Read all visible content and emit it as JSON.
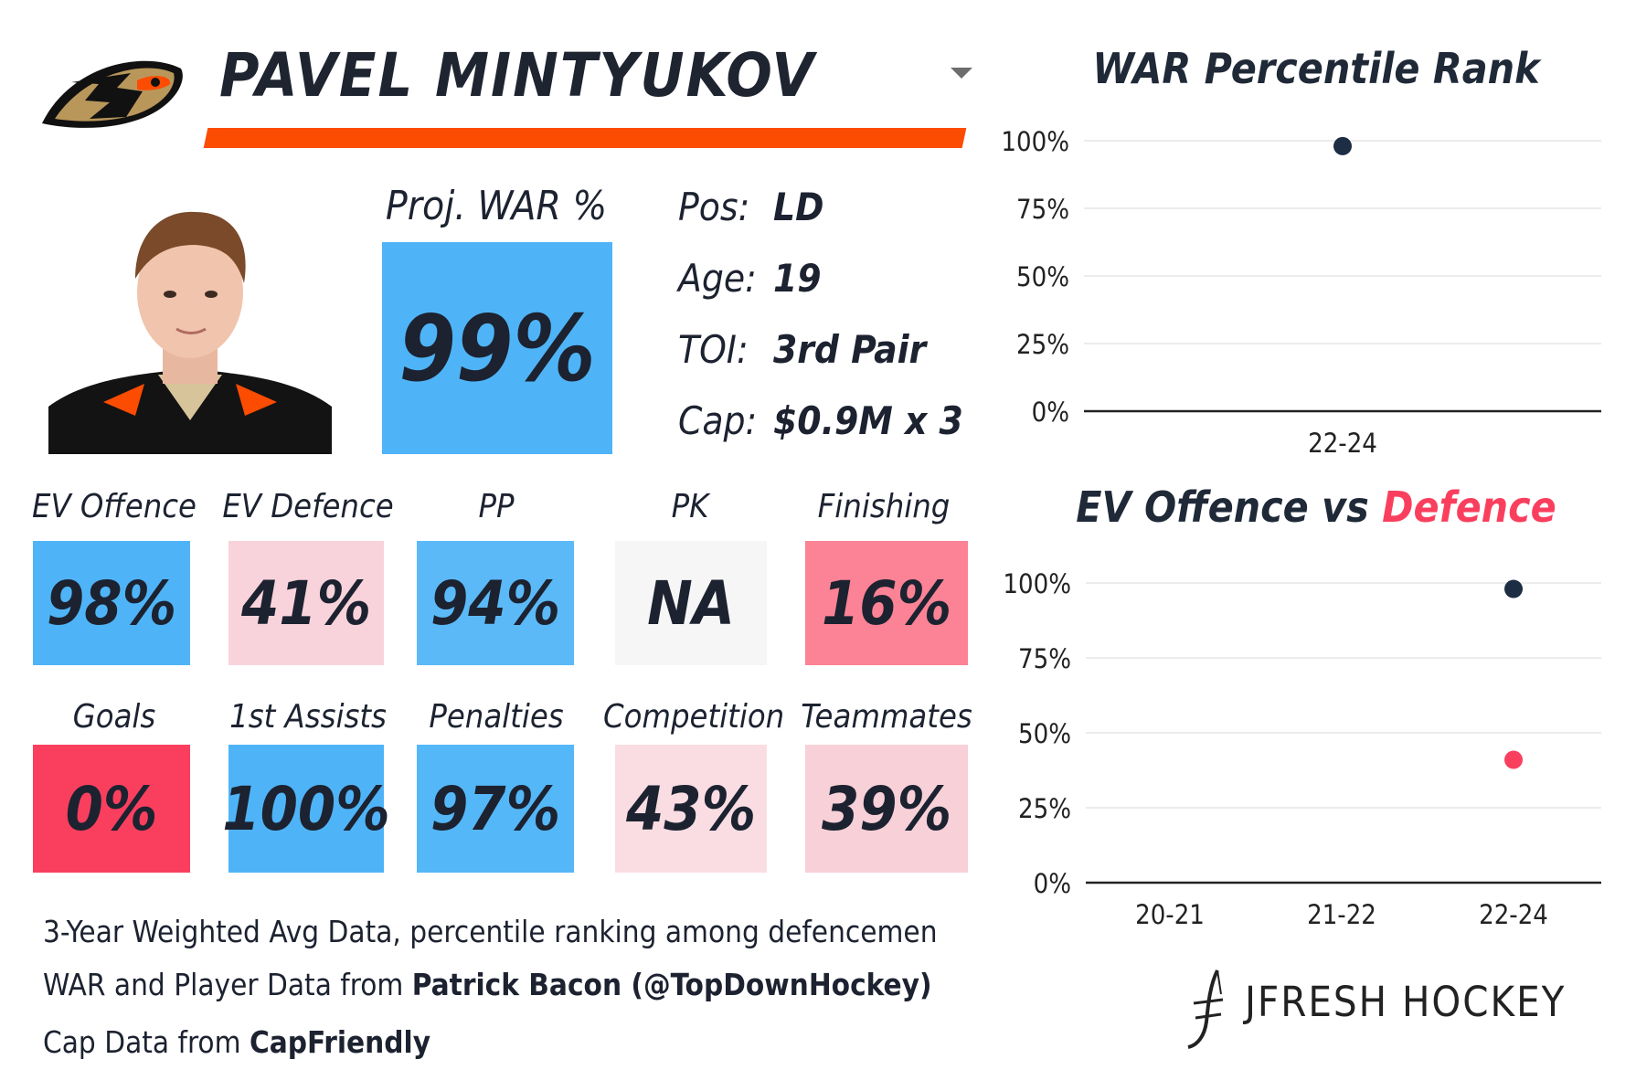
{
  "header": {
    "player_name": "PAVEL MINTYUKOV",
    "team_logo_icon": "anaheim-ducks-logo",
    "dropdown_icon": "chevron-down-icon",
    "accent_color": "#fc4c02"
  },
  "projection": {
    "label": "Proj. WAR %",
    "value": "99%",
    "color": "#4fb4f7"
  },
  "info": [
    {
      "label": "Pos:",
      "value": "LD"
    },
    {
      "label": "Age:",
      "value": "19"
    },
    {
      "label": "TOI:",
      "value": "3rd Pair"
    },
    {
      "label": "Cap:",
      "value": "$0.9M x 3"
    }
  ],
  "stats_row1": [
    {
      "label": "EV Offence",
      "value": "98%",
      "color": "#4fb4f7"
    },
    {
      "label": "EV Defence",
      "value": "41%",
      "color": "#f9d3db"
    },
    {
      "label": "PP",
      "value": "94%",
      "color": "#5bb9f7"
    },
    {
      "label": "PK",
      "value": "NA",
      "color": "#f6f6f6"
    },
    {
      "label": "Finishing",
      "value": "16%",
      "color": "#fb8395"
    }
  ],
  "stats_row2": [
    {
      "label": "Goals",
      "value": "0%",
      "color": "#fa3f5e"
    },
    {
      "label": "1st Assists",
      "value": "100%",
      "color": "#4fb4f7"
    },
    {
      "label": "Penalties",
      "value": "97%",
      "color": "#54b7f7"
    },
    {
      "label": "Competition",
      "value": "43%",
      "color": "#f9dde2"
    },
    {
      "label": "Teammates",
      "value": "39%",
      "color": "#f8d0d8"
    }
  ],
  "footer": {
    "line1": "3-Year Weighted Avg Data, percentile ranking among defencemen",
    "line2_prefix": "WAR and Player Data from ",
    "line2_bold": "Patrick Bacon (@TopDownHockey)",
    "line3_prefix": "Cap Data from ",
    "line3_bold": "CapFriendly"
  },
  "brand": {
    "name": "JFRESH HOCKEY",
    "icon": "jfresh-logo-icon"
  },
  "chart_data": [
    {
      "type": "scatter",
      "title": "WAR Percentile Rank",
      "categories": [
        "22-24"
      ],
      "series": [
        {
          "values": [
            98
          ],
          "color": "#1d2d44"
        }
      ],
      "yticks": [
        "0%",
        "25%",
        "50%",
        "75%",
        "100%"
      ],
      "ylim": [
        0,
        100
      ],
      "grid": true
    },
    {
      "type": "scatter",
      "title_part1": "EV Offence vs ",
      "title_part2": "Defence",
      "title_part2_color": "#fa3f5e",
      "categories": [
        "20-21",
        "21-22",
        "22-24"
      ],
      "series": [
        {
          "values": [
            null,
            null,
            98
          ],
          "color": "#1d2d44"
        },
        {
          "values": [
            null,
            null,
            41
          ],
          "color": "#fa3f5e"
        }
      ],
      "yticks": [
        "0%",
        "25%",
        "50%",
        "75%",
        "100%"
      ],
      "ylim": [
        0,
        100
      ],
      "grid": true
    }
  ]
}
